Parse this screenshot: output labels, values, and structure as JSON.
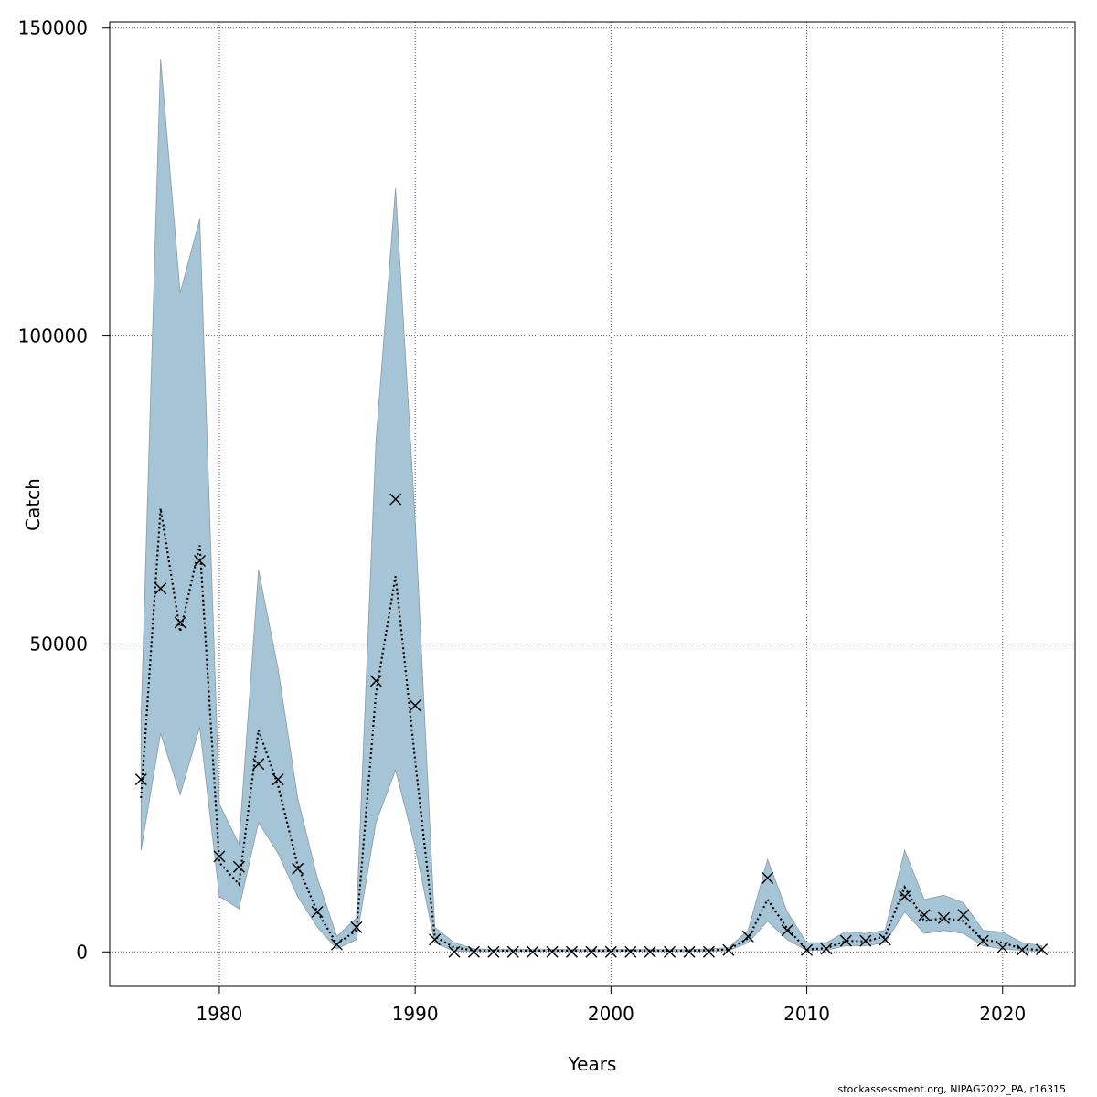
{
  "chart_data": {
    "type": "line",
    "title": "",
    "xlabel": "Years",
    "ylabel": "Catch",
    "xlim": [
      1974.4,
      2023.7
    ],
    "ylim": [
      -5600,
      151000
    ],
    "grid": true,
    "x_ticks": [
      1980,
      1990,
      2000,
      2010,
      2020
    ],
    "y_ticks": [
      0,
      50000,
      100000,
      150000
    ],
    "colors": {
      "band": "#a5c4d6",
      "band_edge": "#8a9aa5",
      "line": "#000000",
      "grid": "#555555"
    },
    "years": [
      1976,
      1977,
      1978,
      1979,
      1980,
      1981,
      1982,
      1983,
      1984,
      1985,
      1986,
      1987,
      1988,
      1989,
      1990,
      1991,
      1992,
      1993,
      1994,
      1995,
      1996,
      1997,
      1998,
      1999,
      2000,
      2001,
      2002,
      2003,
      2004,
      2005,
      2006,
      2007,
      2008,
      2009,
      2010,
      2011,
      2012,
      2013,
      2014,
      2015,
      2016,
      2017,
      2018,
      2019,
      2020,
      2021,
      2022
    ],
    "series": [
      {
        "role": "upper",
        "values": [
          38000,
          145000,
          107000,
          119000,
          24000,
          17500,
          62000,
          46000,
          25000,
          12000,
          2500,
          5500,
          83000,
          124000,
          70000,
          4000,
          1500,
          500,
          400,
          400,
          400,
          400,
          400,
          400,
          400,
          400,
          400,
          400,
          400,
          500,
          700,
          3500,
          15000,
          6500,
          1500,
          1500,
          3300,
          3000,
          3500,
          16500,
          8500,
          9200,
          8000,
          3500,
          3200,
          1500,
          1000
        ]
      },
      {
        "role": "lower",
        "values": [
          16500,
          35500,
          25500,
          36500,
          9000,
          7000,
          21000,
          16000,
          9000,
          4000,
          500,
          2000,
          21000,
          29500,
          17000,
          1500,
          100,
          50,
          50,
          50,
          50,
          50,
          50,
          50,
          50,
          50,
          50,
          50,
          50,
          100,
          200,
          1500,
          5000,
          2000,
          200,
          300,
          1000,
          1000,
          1500,
          6500,
          3000,
          3500,
          3000,
          1000,
          500,
          200,
          100
        ]
      },
      {
        "role": "estimate",
        "values": [
          25000,
          72000,
          52000,
          66000,
          14500,
          11000,
          36000,
          27000,
          14000,
          6500,
          1300,
          3500,
          42000,
          61000,
          31000,
          2500,
          700,
          250,
          200,
          200,
          200,
          200,
          200,
          200,
          200,
          200,
          200,
          200,
          200,
          250,
          400,
          2200,
          8500,
          3800,
          400,
          600,
          1800,
          1700,
          2500,
          10500,
          5000,
          5500,
          5000,
          2000,
          1500,
          500,
          300
        ]
      },
      {
        "role": "observed",
        "values": [
          28000,
          59000,
          53500,
          63500,
          15500,
          13800,
          30500,
          28000,
          13500,
          6500,
          1200,
          4000,
          44000,
          73500,
          40000,
          2000,
          0,
          0,
          0,
          0,
          0,
          0,
          0,
          0,
          0,
          0,
          0,
          0,
          0,
          0,
          300,
          2500,
          12000,
          3500,
          300,
          500,
          1800,
          1800,
          2000,
          9000,
          6000,
          5500,
          6000,
          1800,
          700,
          300,
          400
        ]
      }
    ]
  },
  "footer_text": "stockassessment.org, NIPAG2022_PA, r16315"
}
